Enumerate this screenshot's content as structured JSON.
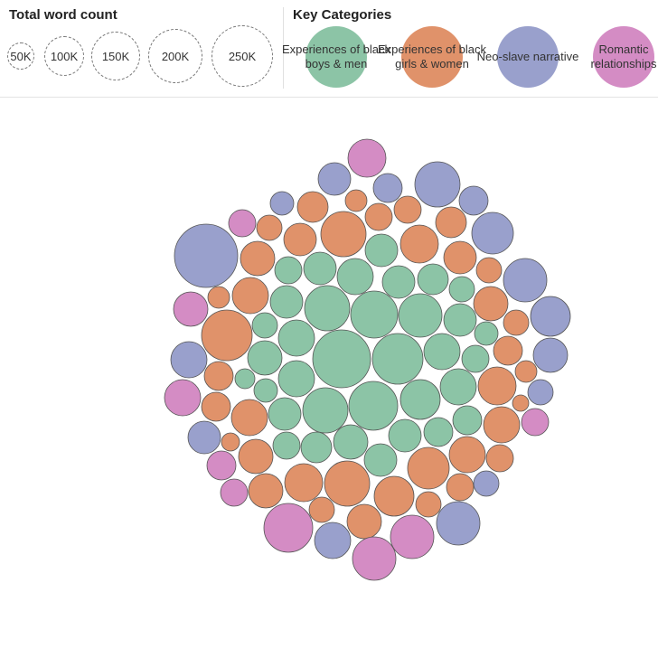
{
  "legend": {
    "size_title": "Total word count",
    "size_labels": [
      "50K",
      "100K",
      "150K",
      "200K",
      "250K"
    ],
    "category_title": "Key Categories",
    "categories": [
      {
        "label": "Experiences of black boys & men",
        "color": "#8cc4a6"
      },
      {
        "label": "Experiences of black girls & women",
        "color": "#e0926a"
      },
      {
        "label": "Neo-slave narrative",
        "color": "#99a0cc"
      },
      {
        "label": "Romantic relationships",
        "color": "#d48cc4"
      }
    ]
  },
  "chart_data": {
    "type": "bubble",
    "size_measure": "Total word count",
    "color_measure": "Key Categories",
    "series": [
      {
        "name": "Experiences of black boys & men",
        "count": 40
      },
      {
        "name": "Experiences of black girls & women",
        "count": 38
      },
      {
        "name": "Neo-slave narrative",
        "count": 19
      },
      {
        "name": "Romantic relationships",
        "count": 11
      }
    ]
  }
}
